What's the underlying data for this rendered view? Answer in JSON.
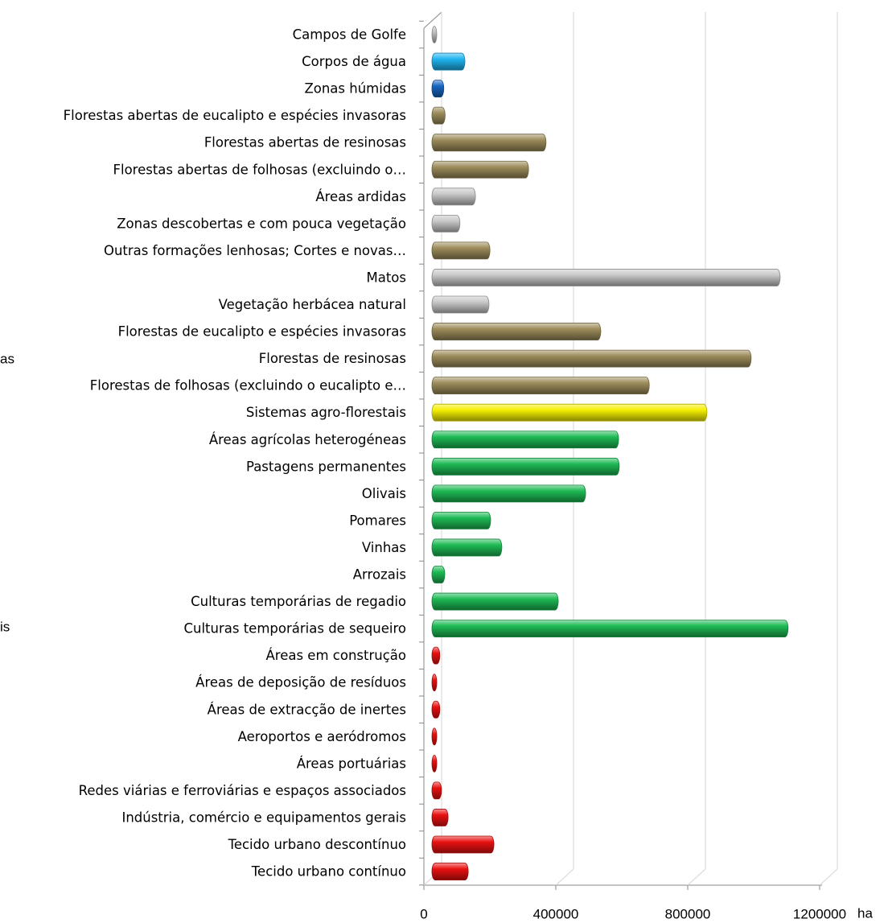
{
  "chart_data": {
    "type": "bar",
    "orientation": "horizontal",
    "categories": [
      "Campos de Golfe",
      "Corpos de água",
      "Zonas húmidas",
      "Florestas abertas de eucalipto e espécies invasoras",
      "Florestas abertas de resinosas",
      "Florestas abertas de folhosas (excluindo o…",
      "Áreas ardidas",
      "Zonas descobertas e com pouca vegetação",
      "Outras formações lenhosas; Cortes e novas…",
      "Matos",
      "Vegetação herbácea natural",
      "Florestas de eucalipto e espécies invasoras",
      "Florestas de resinosas",
      "Florestas de folhosas (excluindo o eucalipto e…",
      "Sistemas agro-florestais",
      "Áreas agrícolas heterogéneas",
      "Pastagens permanentes",
      "Olivais",
      "Pomares",
      "Vinhas",
      "Arrozais",
      "Culturas temporárias de regadio",
      "Culturas temporárias de sequeiro",
      "Áreas em construção",
      "Áreas de deposição de resíduos",
      "Áreas de extracção de inertes",
      "Aeroportos e aeródromos",
      "Áreas portuárias",
      "Redes viárias e ferroviárias e espaços associados",
      "Indústria, comércio e equipamentos gerais",
      "Tecido urbano descontínuo",
      "Tecido urbano contínuo"
    ],
    "values": [
      10000,
      100000,
      36000,
      40000,
      346000,
      293000,
      132000,
      85000,
      176000,
      1056000,
      173000,
      512000,
      968000,
      659000,
      834000,
      566000,
      568000,
      466000,
      178000,
      212000,
      39000,
      383000,
      1080000,
      24000,
      10000,
      24000,
      12000,
      10000,
      29000,
      49000,
      188000,
      110000
    ],
    "colors": [
      "#c0c0c0",
      "#1eb4f0",
      "#1565c0",
      "#9c8c5a",
      "#9c8c5a",
      "#9c8c5a",
      "#c8c8c8",
      "#c8c8c8",
      "#9c8c5a",
      "#c8c8c8",
      "#c8c8c8",
      "#9c8c5a",
      "#9c8c5a",
      "#9c8c5a",
      "#f5f000",
      "#1db954",
      "#1db954",
      "#1db954",
      "#1db954",
      "#1db954",
      "#1db954",
      "#1db954",
      "#1db954",
      "#e81010",
      "#e81010",
      "#e81010",
      "#e81010",
      "#e81010",
      "#e81010",
      "#e81010",
      "#e81010",
      "#e81010"
    ],
    "xlim": [
      0,
      1200000
    ],
    "xticks": [
      0,
      400000,
      800000,
      1200000
    ],
    "x_label": "ha",
    "grid": true,
    "annotations": [
      "as",
      "is"
    ]
  }
}
